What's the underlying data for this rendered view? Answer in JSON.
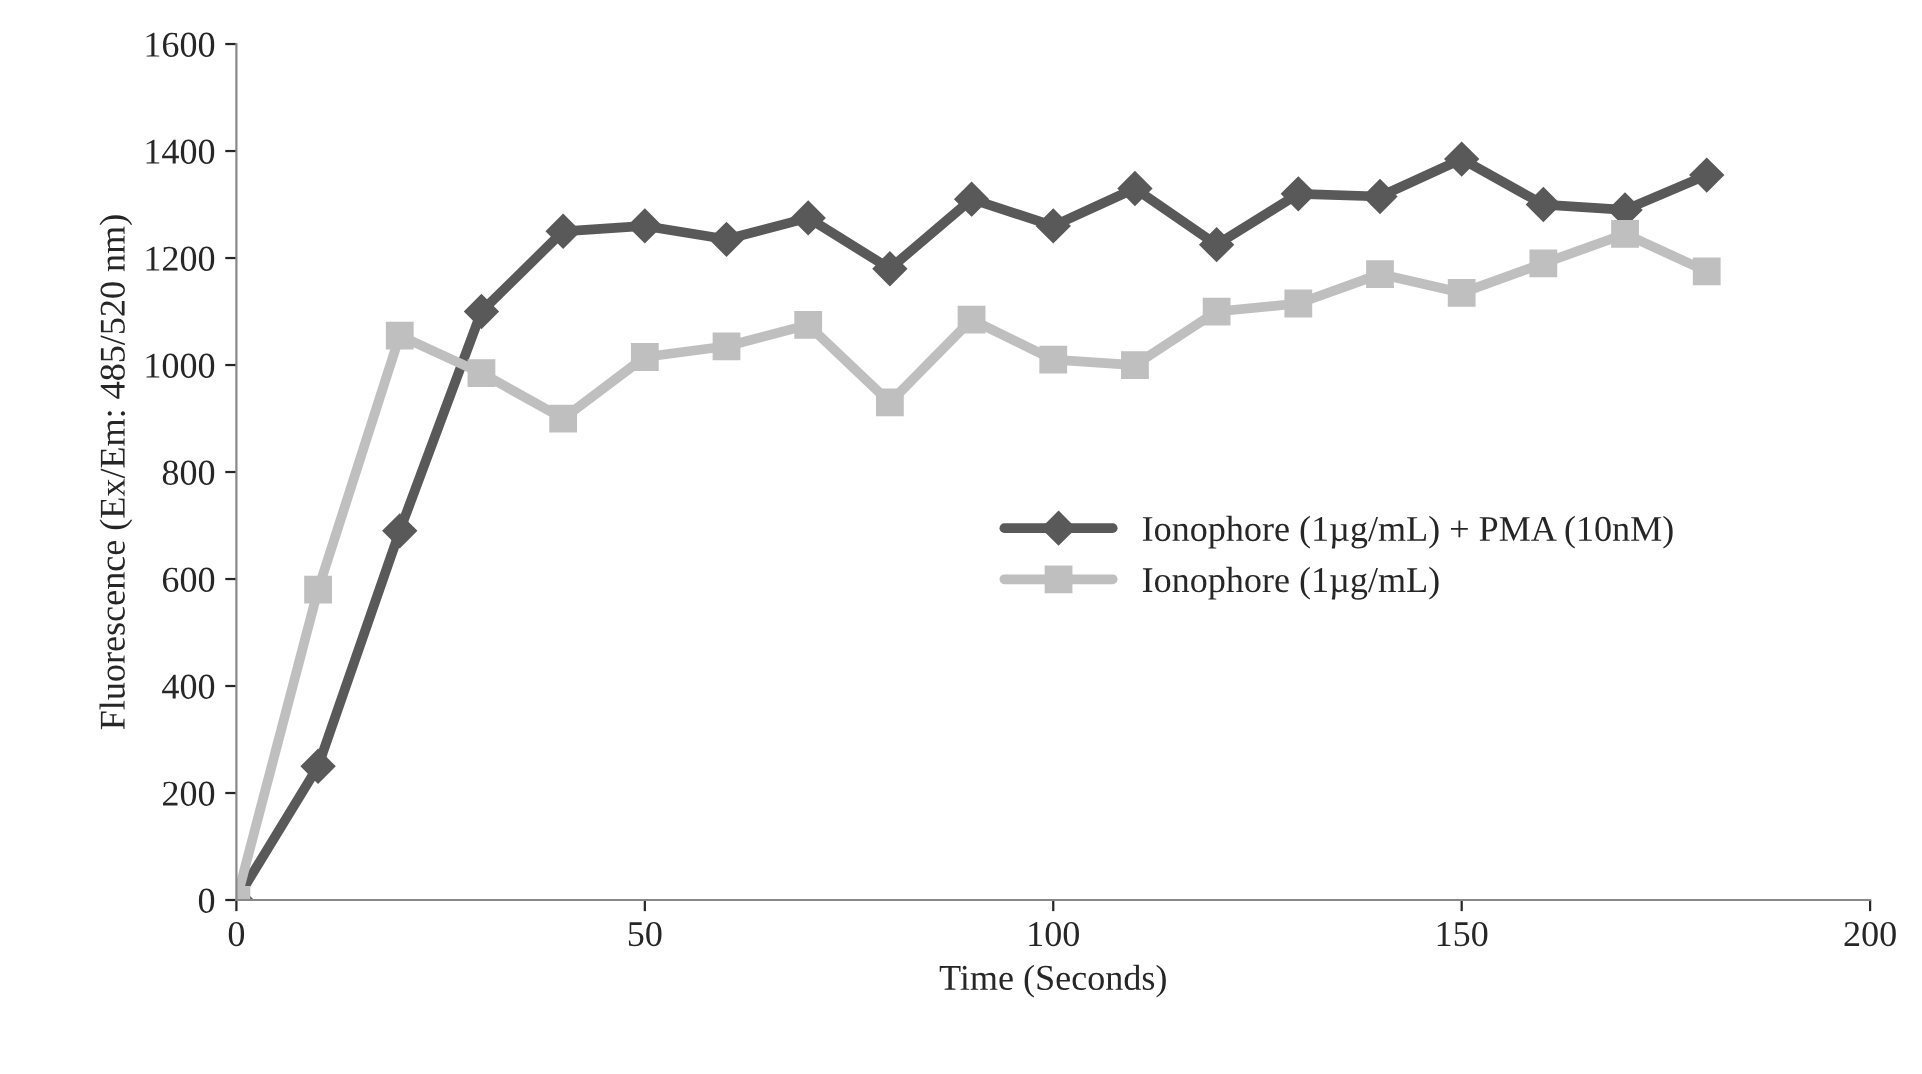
{
  "chart_data": {
    "type": "line",
    "xlabel": "Time (Seconds)",
    "ylabel": "Fluorescence (Ex/Em: 485/520 nm)",
    "x": [
      0,
      10,
      20,
      30,
      40,
      50,
      60,
      70,
      80,
      90,
      100,
      110,
      120,
      130,
      140,
      150,
      160,
      170,
      180
    ],
    "series": [
      {
        "name": "Ionophore (1µg/mL) + PMA (10nM)",
        "color": "#595959",
        "marker": "diamond",
        "values": [
          0,
          250,
          690,
          1100,
          1250,
          1260,
          1235,
          1275,
          1180,
          1310,
          1260,
          1330,
          1225,
          1320,
          1315,
          1385,
          1300,
          1290,
          1355
        ]
      },
      {
        "name": "Ionophore (1µg/mL)",
        "color": "#bfbfbf",
        "marker": "square",
        "values": [
          0,
          580,
          1055,
          985,
          900,
          1015,
          1035,
          1075,
          930,
          1085,
          1010,
          1000,
          1100,
          1115,
          1170,
          1135,
          1190,
          1245,
          1175
        ]
      }
    ],
    "xlim": [
      0,
      200
    ],
    "xticks": [
      0,
      50,
      100,
      150,
      200
    ],
    "ylim": [
      0,
      1600
    ],
    "yticks": [
      0,
      200,
      400,
      600,
      800,
      1000,
      1200,
      1400,
      1600
    ],
    "grid": false,
    "legend": "right",
    "line_style": "solid"
  }
}
